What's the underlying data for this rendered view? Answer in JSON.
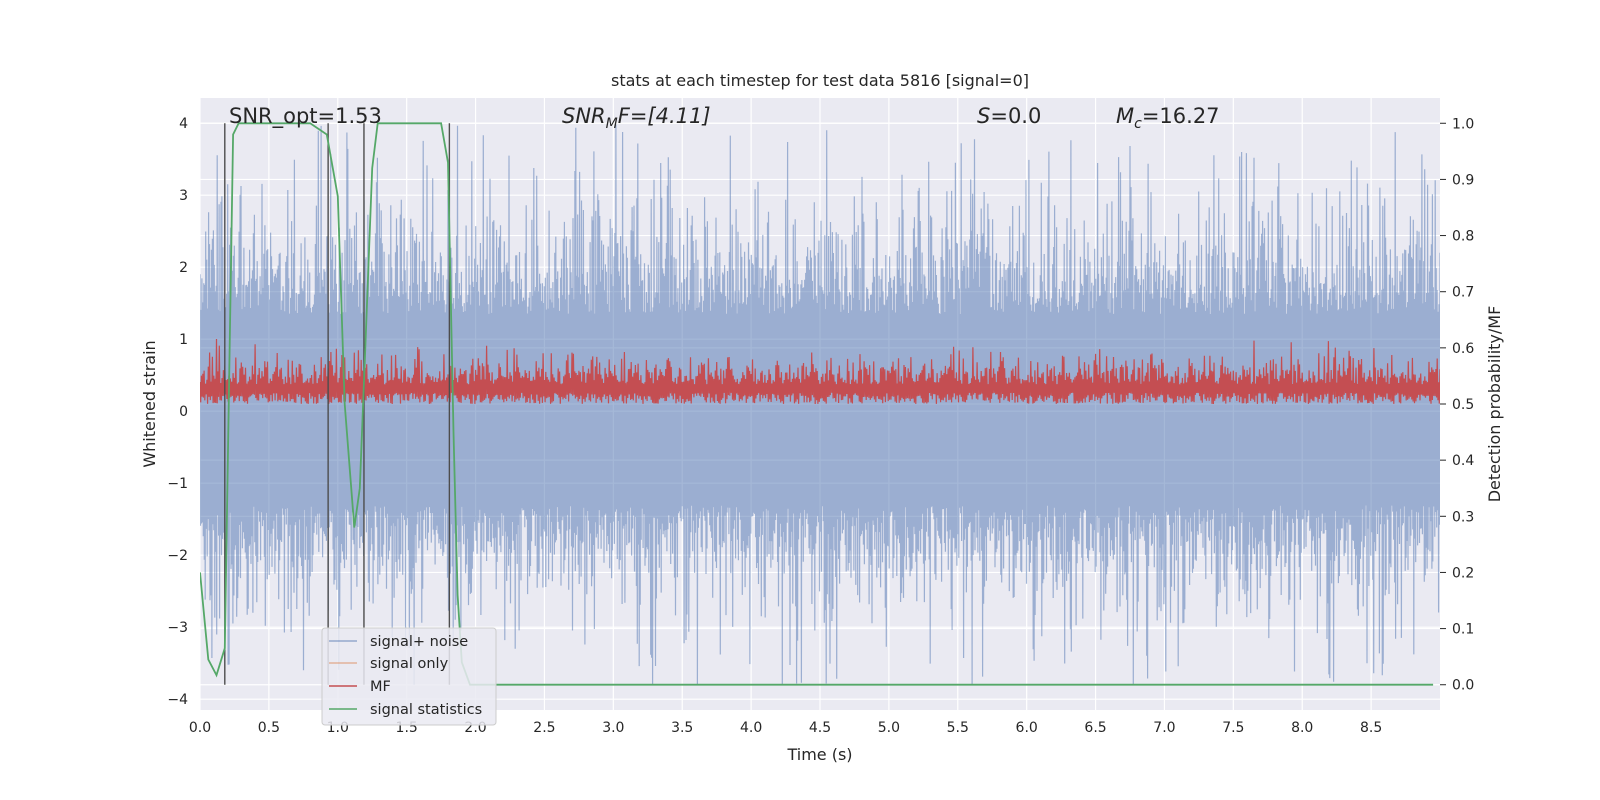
{
  "chart_data": {
    "type": "line",
    "title": "stats at each timestep for test data 5816 [signal=0]",
    "xlabel": "Time (s)",
    "ylabel_left": "Whitened strain",
    "ylabel_right": "Detection probability/MF",
    "xlim": [
      0,
      9.0
    ],
    "ylim_left": [
      -4.15,
      4.35
    ],
    "ylim_right": [
      -0.045,
      1.045
    ],
    "xticks": [
      0.0,
      0.5,
      1.0,
      1.5,
      2.0,
      2.5,
      3.0,
      3.5,
      4.0,
      4.5,
      5.0,
      5.5,
      6.0,
      6.5,
      7.0,
      7.5,
      8.0,
      8.5
    ],
    "xtick_labels": [
      "0.0",
      "0.5",
      "1.0",
      "1.5",
      "2.0",
      "2.5",
      "3.0",
      "3.5",
      "4.0",
      "4.5",
      "5.0",
      "5.5",
      "6.0",
      "6.5",
      "7.0",
      "7.5",
      "8.0",
      "8.5"
    ],
    "yticks_left": [
      -4,
      -3,
      -2,
      -1,
      0,
      1,
      2,
      3,
      4
    ],
    "ytick_labels_left": [
      "−4",
      "−3",
      "−2",
      "−1",
      "0",
      "1",
      "2",
      "3",
      "4"
    ],
    "yticks_right": [
      0.0,
      0.1,
      0.2,
      0.3,
      0.4,
      0.5,
      0.6,
      0.7,
      0.8,
      0.9,
      1.0
    ],
    "ytick_labels_right": [
      "0.0",
      "0.1",
      "0.2",
      "0.3",
      "0.4",
      "0.5",
      "0.6",
      "0.7",
      "0.8",
      "0.9",
      "1.0"
    ],
    "grid": true,
    "legend_placement": "lower-left",
    "annotations": {
      "snr_opt": "SNR_opt=1.53",
      "snr_mf_base": "SNR",
      "snr_mf_sub": "M",
      "snr_mf_rest": "F=[4.11]",
      "s_base": "S",
      "s_rest": "=0.0",
      "mc_base": "M",
      "mc_sub": "c",
      "mc_rest": "=16.27"
    },
    "series": [
      {
        "name": "signal+ noise",
        "axis": "left",
        "color": "#4c72b0",
        "style": "dense noise, amplitude about ±2.3 with spikes to ±3.8",
        "envelope": {
          "lower_typical": -2.2,
          "upper_typical": 2.3,
          "max_spike": 4.0,
          "min_spike": -3.8
        }
      },
      {
        "name": "signal only",
        "axis": "left",
        "color": "#dd8452",
        "values": []
      },
      {
        "name": "MF",
        "axis": "right",
        "color": "#c44e52",
        "style": "dense band between 0.50 and about 0.62",
        "envelope": {
          "lower": 0.5,
          "upper_typical": 0.56,
          "max": 0.616
        }
      },
      {
        "name": "signal statistics",
        "axis": "right",
        "color": "#55a868",
        "x": [
          0.0,
          0.06,
          0.12,
          0.18,
          0.24,
          0.28,
          0.33,
          0.4,
          0.5,
          0.6,
          0.7,
          0.8,
          0.86,
          0.92,
          1.0,
          1.05,
          1.12,
          1.16,
          1.2,
          1.25,
          1.29,
          1.33,
          1.4,
          1.5,
          1.6,
          1.7,
          1.75,
          1.8,
          1.84,
          1.87,
          1.9,
          1.96,
          2.05,
          2.2,
          3.0,
          4.0,
          5.0,
          6.0,
          7.0,
          8.0,
          8.95
        ],
        "values": [
          0.2,
          0.045,
          0.017,
          0.065,
          0.98,
          1.0,
          1.0,
          1.0,
          1.0,
          1.0,
          1.0,
          1.0,
          0.99,
          0.98,
          0.87,
          0.5,
          0.28,
          0.35,
          0.6,
          0.92,
          1.0,
          1.0,
          1.0,
          1.0,
          1.0,
          1.0,
          1.0,
          0.93,
          0.45,
          0.16,
          0.04,
          0.0,
          0.0,
          0.0,
          0.0,
          0.0,
          0.0,
          0.0,
          0.0,
          0.0,
          0.0
        ]
      },
      {
        "name": "",
        "axis": "left",
        "color": "#4d4d4d",
        "style": "vertical markers",
        "x": [
          0.18,
          0.93,
          1.19,
          1.81
        ]
      }
    ]
  }
}
